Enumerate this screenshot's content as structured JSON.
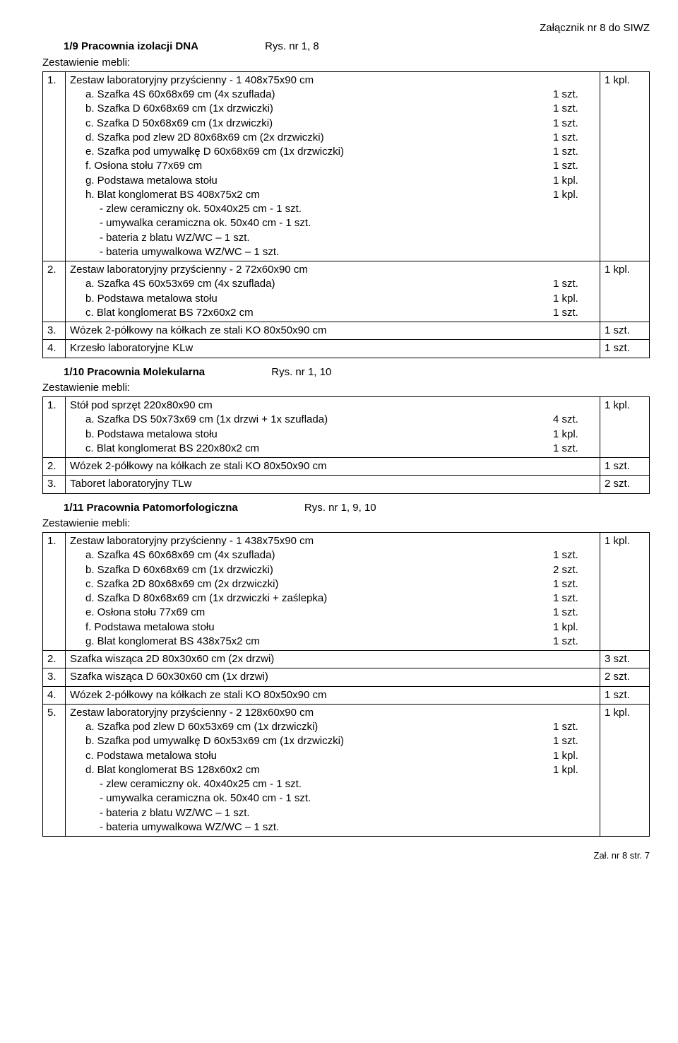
{
  "header_right": "Załącznik nr 8 do SIWZ",
  "zest_label": "Zestawienie mebli:",
  "footer": "Zał. nr 8  str. 7",
  "section1": {
    "title": "1/9 Pracownia izolacji DNA",
    "rys": "Rys. nr 1, 8",
    "rows": [
      {
        "n": "1.",
        "head": "Zestaw laboratoryjny przyścienny - 1   408x75x90 cm",
        "qty": "1 kpl.",
        "subs": [
          [
            "a. Szafka 4S 60x68x69 cm (4x szuflada)",
            "1 szt."
          ],
          [
            "b. Szafka D 60x68x69 cm (1x drzwiczki)",
            "1 szt."
          ],
          [
            "c. Szafka D 50x68x69 cm (1x drzwiczki)",
            "1 szt."
          ],
          [
            "d. Szafka pod zlew 2D 80x68x69 cm (2x drzwiczki)",
            "1 szt."
          ],
          [
            "e. Szafka pod umywalkę D 60x68x69 cm (1x drzwiczki)",
            "1 szt."
          ],
          [
            "f. Osłona stołu 77x69 cm",
            "1 szt."
          ],
          [
            "g. Podstawa metalowa stołu",
            "1 kpl."
          ],
          [
            "h. Blat konglomerat BS  408x75x2 cm",
            "1 kpl."
          ]
        ],
        "notes": [
          "- zlew ceramiczny ok. 50x40x25 cm - 1 szt.",
          "- umywalka ceramiczna ok. 50x40 cm - 1 szt.",
          "- bateria z blatu WZ/WC – 1 szt.",
          "- bateria umywalkowa WZ/WC – 1 szt."
        ]
      },
      {
        "n": "2.",
        "head": "Zestaw laboratoryjny przyścienny - 2   72x60x90 cm",
        "qty": "1 kpl.",
        "subs": [
          [
            "a. Szafka 4S 60x53x69 cm (4x szuflada)",
            "1 szt."
          ],
          [
            "b. Podstawa metalowa stołu",
            "1 kpl."
          ],
          [
            "c. Blat konglomerat BS  72x60x2 cm",
            "1 szt."
          ]
        ],
        "notes": []
      },
      {
        "n": "3.",
        "head": "Wózek 2-półkowy na kółkach ze stali KO 80x50x90 cm",
        "qty": "1 szt.",
        "subs": [],
        "notes": []
      },
      {
        "n": "4.",
        "head": "Krzesło laboratoryjne KLw",
        "qty": "1 szt.",
        "subs": [],
        "notes": []
      }
    ]
  },
  "section2": {
    "title": "1/10 Pracownia Molekularna",
    "rys": "Rys. nr 1, 10",
    "rows": [
      {
        "n": "1.",
        "head": "Stół pod sprzęt   220x80x90 cm",
        "qty": "1 kpl.",
        "subs": [
          [
            "a. Szafka DS 50x73x69 cm (1x drzwi + 1x szuflada)",
            "4 szt."
          ],
          [
            "b. Podstawa metalowa stołu",
            "1 kpl."
          ],
          [
            "c. Blat konglomerat BS  220x80x2 cm",
            "1 szt."
          ]
        ],
        "notes": []
      },
      {
        "n": "2.",
        "head": "Wózek 2-półkowy na kółkach ze stali KO 80x50x90 cm",
        "qty": "1 szt.",
        "subs": [],
        "notes": []
      },
      {
        "n": "3.",
        "head": "Taboret laboratoryjny TLw",
        "qty": "2 szt.",
        "subs": [],
        "notes": []
      }
    ]
  },
  "section3": {
    "title": "1/11 Pracownia Patomorfologiczna",
    "rys": "Rys. nr 1, 9, 10",
    "rows": [
      {
        "n": "1.",
        "head": "Zestaw laboratoryjny przyścienny - 1   438x75x90 cm",
        "qty": "1 kpl.",
        "subs": [
          [
            "a. Szafka 4S 60x68x69 cm (4x szuflada)",
            "1 szt."
          ],
          [
            "b. Szafka D 60x68x69 cm (1x drzwiczki)",
            "2 szt."
          ],
          [
            "c. Szafka 2D 80x68x69 cm (2x drzwiczki)",
            "1 szt."
          ],
          [
            "d. Szafka D 80x68x69 cm (1x drzwiczki + zaślepka)",
            "1 szt."
          ],
          [
            "e. Osłona stołu 77x69 cm",
            "1 szt."
          ],
          [
            "f. Podstawa metalowa stołu",
            "1 kpl."
          ],
          [
            "g. Blat konglomerat BS  438x75x2 cm",
            "1 szt."
          ]
        ],
        "notes": []
      },
      {
        "n": "2.",
        "head": "Szafka wisząca 2D 80x30x60 cm (2x drzwi)",
        "qty": "3 szt.",
        "subs": [],
        "notes": []
      },
      {
        "n": "3.",
        "head": "Szafka wisząca D 60x30x60 cm (1x drzwi)",
        "qty": "2 szt.",
        "subs": [],
        "notes": []
      },
      {
        "n": "4.",
        "head": "Wózek 2-półkowy na kółkach ze stali KO 80x50x90 cm",
        "qty": "1 szt.",
        "subs": [],
        "notes": []
      },
      {
        "n": "5.",
        "head": "Zestaw laboratoryjny przyścienny - 2   128x60x90 cm",
        "qty": "1 kpl.",
        "subs": [
          [
            "a. Szafka pod zlew D 60x53x69 cm (1x drzwiczki)",
            "1 szt."
          ],
          [
            "b. Szafka pod umywalkę D 60x53x69 cm (1x drzwiczki)",
            "1 szt."
          ],
          [
            "c. Podstawa metalowa stołu",
            "1 kpl."
          ],
          [
            "d. Blat konglomerat BS 128x60x2 cm",
            "1 kpl."
          ]
        ],
        "notes": [
          "- zlew ceramiczny ok. 40x40x25 cm - 1 szt.",
          "- umywalka ceramiczna ok. 50x40 cm - 1 szt.",
          "- bateria z blatu WZ/WC – 1 szt.",
          "- bateria umywalkowa WZ/WC – 1 szt."
        ]
      }
    ]
  }
}
